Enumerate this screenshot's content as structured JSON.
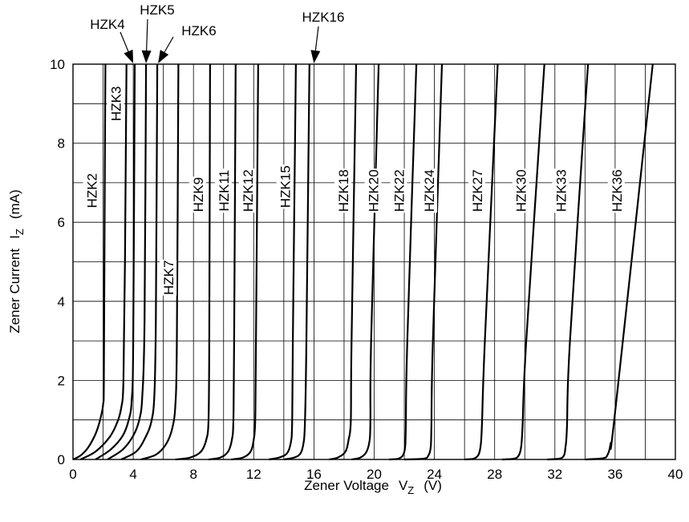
{
  "chart_data": {
    "type": "line",
    "title": "",
    "xlabel": "Zener Voltage",
    "xlabel_symbol": "V",
    "xlabel_sub": "Z",
    "xlabel_unit": "(V)",
    "ylabel": "Zener Current",
    "ylabel_symbol": "I",
    "ylabel_sub": "Z",
    "ylabel_unit": "(mA)",
    "xlim": [
      0,
      40
    ],
    "ylim": [
      0,
      10
    ],
    "x_ticks": [
      0,
      4,
      8,
      12,
      16,
      20,
      24,
      28,
      32,
      36,
      40
    ],
    "y_ticks": [
      0,
      2,
      4,
      6,
      8,
      10
    ],
    "x_grid_step": 2,
    "y_grid_step": 1,
    "grid": true,
    "series": [
      {
        "name": "HZK2",
        "x": [
          0,
          0.5,
          1.0,
          1.5,
          1.8,
          2.0,
          2.05,
          2.1,
          2.15
        ],
        "y": [
          0,
          0.1,
          0.3,
          0.65,
          1.0,
          1.4,
          2.0,
          6.0,
          10
        ]
      },
      {
        "name": "HZK3",
        "x": [
          0.5,
          1.5,
          2.4,
          2.9,
          3.2,
          3.35,
          3.45,
          3.55
        ],
        "y": [
          0,
          0.2,
          0.55,
          0.9,
          1.3,
          2.0,
          5.0,
          10
        ]
      },
      {
        "name": "HZK4",
        "x": [
          1.5,
          2.5,
          3.3,
          3.7,
          3.9,
          4.0,
          4.1
        ],
        "y": [
          0,
          0.25,
          0.6,
          1.0,
          1.5,
          3.0,
          10
        ]
      },
      {
        "name": "HZK5",
        "x": [
          2.3,
          3.3,
          4.0,
          4.4,
          4.6,
          4.75,
          4.85
        ],
        "y": [
          0,
          0.25,
          0.6,
          1.0,
          1.6,
          3.5,
          10
        ]
      },
      {
        "name": "HZK6",
        "x": [
          3.2,
          4.2,
          4.8,
          5.2,
          5.4,
          5.5,
          5.6
        ],
        "y": [
          0,
          0.2,
          0.55,
          0.95,
          1.6,
          3.5,
          10
        ]
      },
      {
        "name": "HZK7",
        "x": [
          4.5,
          5.5,
          6.2,
          6.6,
          6.8,
          6.9,
          7.0
        ],
        "y": [
          0,
          0.12,
          0.4,
          0.8,
          1.4,
          3.0,
          10
        ]
      },
      {
        "name": "HZK9",
        "x": [
          6.8,
          7.8,
          8.5,
          8.85,
          9.0,
          9.05,
          9.1
        ],
        "y": [
          0,
          0.05,
          0.2,
          0.5,
          1.0,
          3.0,
          10
        ]
      },
      {
        "name": "HZK11",
        "x": [
          9.0,
          9.8,
          10.3,
          10.55,
          10.65,
          10.7,
          10.8
        ],
        "y": [
          0,
          0.05,
          0.2,
          0.5,
          1.0,
          3.0,
          10
        ]
      },
      {
        "name": "HZK12",
        "x": [
          10.5,
          11.3,
          11.8,
          12.0,
          12.1,
          12.15,
          12.3
        ],
        "y": [
          0,
          0.05,
          0.2,
          0.5,
          1.0,
          3.0,
          10
        ]
      },
      {
        "name": "HZK15",
        "x": [
          13.0,
          13.7,
          14.2,
          14.45,
          14.55,
          14.6,
          14.8
        ],
        "y": [
          0,
          0.05,
          0.15,
          0.4,
          0.9,
          3.0,
          10
        ]
      },
      {
        "name": "HZK16",
        "x": [
          14.0,
          14.7,
          15.1,
          15.3,
          15.4,
          15.5,
          15.7
        ],
        "y": [
          0,
          0.05,
          0.15,
          0.4,
          0.9,
          3.0,
          10
        ]
      },
      {
        "name": "HZK18",
        "x": [
          17.0,
          17.6,
          18.1,
          18.3,
          18.45,
          18.5,
          18.8
        ],
        "y": [
          0,
          0.05,
          0.2,
          0.5,
          1.0,
          3.0,
          10
        ]
      },
      {
        "name": "HZK20",
        "x": [
          18.5,
          19.1,
          19.5,
          19.7,
          19.75,
          19.8,
          20.3
        ],
        "y": [
          0,
          0.05,
          0.2,
          0.5,
          1.0,
          3.0,
          10
        ]
      },
      {
        "name": "HZK22",
        "x": [
          21.0,
          21.6,
          21.9,
          22.05,
          22.1,
          22.2,
          22.8
        ],
        "y": [
          0,
          0.02,
          0.1,
          0.3,
          0.8,
          3.0,
          10
        ]
      },
      {
        "name": "HZK24",
        "x": [
          22.0,
          23.3,
          23.6,
          23.75,
          23.8,
          23.9,
          24.5
        ],
        "y": [
          0,
          0.02,
          0.1,
          0.3,
          0.8,
          3.0,
          10
        ]
      },
      {
        "name": "HZK27",
        "x": [
          26.0,
          26.6,
          26.9,
          27.05,
          27.15,
          27.35,
          28.2
        ],
        "y": [
          0,
          0.02,
          0.1,
          0.3,
          0.8,
          3.0,
          10
        ]
      },
      {
        "name": "HZK30",
        "x": [
          28.5,
          29.3,
          29.6,
          29.75,
          29.85,
          30.1,
          31.3
        ],
        "y": [
          0,
          0.02,
          0.1,
          0.3,
          0.8,
          3.0,
          10
        ]
      },
      {
        "name": "HZK33",
        "x": [
          31.5,
          32.3,
          32.6,
          32.7,
          32.8,
          33.0,
          34.2
        ],
        "y": [
          0,
          0.02,
          0.1,
          0.3,
          0.8,
          3.0,
          10
        ]
      },
      {
        "name": "HZK36",
        "x": [
          34.0,
          35.2,
          35.5,
          35.7,
          36.0,
          38.5
        ],
        "y": [
          0,
          0.03,
          0.12,
          0.4,
          1.2,
          10
        ]
      }
    ],
    "inline_labels": [
      {
        "text": "HZK2",
        "x": 1.25,
        "y": 6.8
      },
      {
        "text": "HZK3",
        "x": 2.85,
        "y": 9.0
      },
      {
        "text": "HZK7",
        "x": 6.35,
        "y": 4.6
      },
      {
        "text": "HZK9",
        "x": 8.3,
        "y": 6.7
      },
      {
        "text": "HZK11",
        "x": 10.0,
        "y": 6.8
      },
      {
        "text": "HZK12",
        "x": 11.6,
        "y": 6.8
      },
      {
        "text": "HZK15",
        "x": 14.1,
        "y": 6.9
      },
      {
        "text": "HZK18",
        "x": 17.95,
        "y": 6.8
      },
      {
        "text": "HZK20",
        "x": 19.95,
        "y": 6.8
      },
      {
        "text": "HZK22",
        "x": 21.65,
        "y": 6.8
      },
      {
        "text": "HZK24",
        "x": 23.65,
        "y": 6.8
      },
      {
        "text": "HZK27",
        "x": 26.85,
        "y": 6.8
      },
      {
        "text": "HZK30",
        "x": 29.75,
        "y": 6.8
      },
      {
        "text": "HZK33",
        "x": 32.4,
        "y": 6.8
      },
      {
        "text": "HZK36",
        "x": 36.1,
        "y": 6.8
      }
    ],
    "arrow_labels": [
      {
        "text": "HZK4",
        "target_x": 4.0
      },
      {
        "text": "HZK5",
        "target_x": 4.85
      },
      {
        "text": "HZK6",
        "target_x": 5.65
      },
      {
        "text": "HZK16",
        "target_x": 16.0
      }
    ]
  }
}
